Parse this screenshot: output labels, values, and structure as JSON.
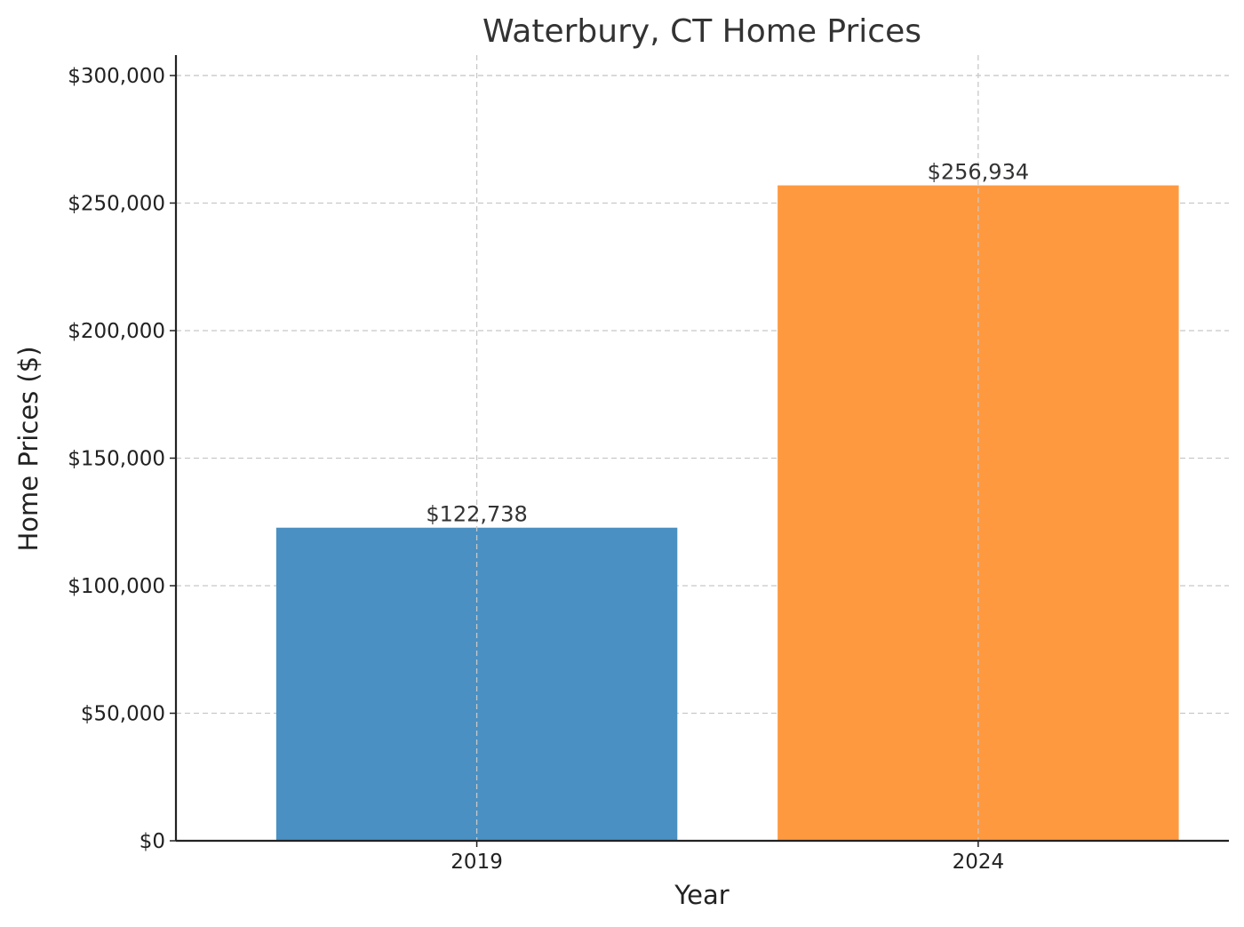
{
  "chart_data": {
    "type": "bar",
    "title": "Waterbury, CT Home Prices",
    "xlabel": "Year",
    "ylabel": "Home Prices ($)",
    "categories": [
      "2019",
      "2024"
    ],
    "values": [
      122738,
      256934
    ],
    "value_labels": [
      "$122,738",
      "$256,934"
    ],
    "bar_colors": [
      "#4a90c2",
      "#ff9940"
    ],
    "ylim": [
      0,
      308000
    ],
    "yticks": [
      0,
      50000,
      100000,
      150000,
      200000,
      250000,
      300000
    ],
    "ytick_labels": [
      "$0",
      "$50,000",
      "$100,000",
      "$150,000",
      "$200,000",
      "$250,000",
      "$300,000"
    ],
    "grid": true
  }
}
